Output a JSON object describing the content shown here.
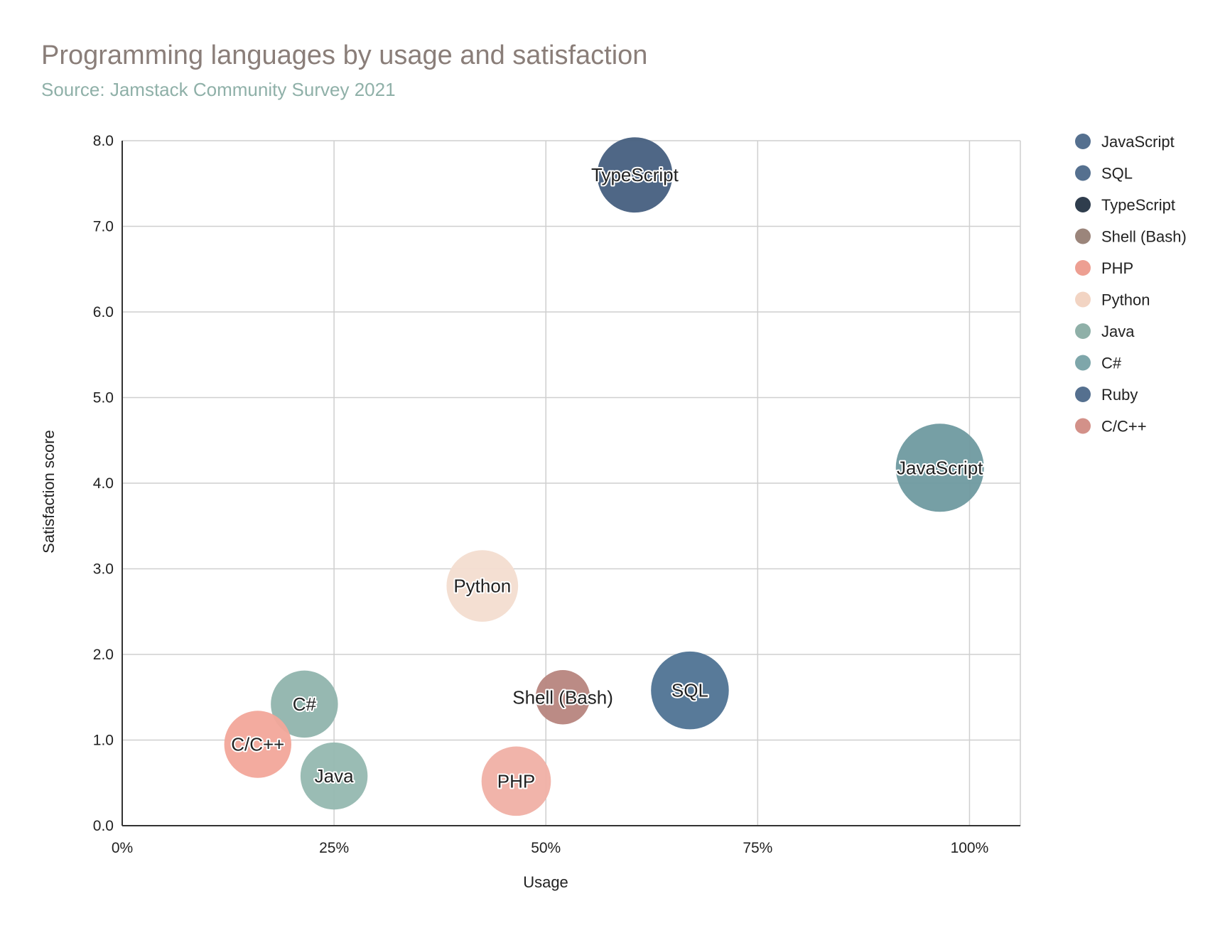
{
  "chart_data": {
    "type": "bubble",
    "title": "Programming languages by usage and satisfaction",
    "subtitle": "Source: Jamstack Community Survey 2021",
    "xlabel": "Usage",
    "ylabel": "Satisfaction score",
    "xlim": [
      0,
      1.06
    ],
    "ylim": [
      0,
      8
    ],
    "x_ticks": [
      0,
      0.25,
      0.5,
      0.75,
      1.0
    ],
    "x_tick_labels": [
      "0%",
      "25%",
      "50%",
      "75%",
      "100%"
    ],
    "y_ticks": [
      0,
      1,
      2,
      3,
      4,
      5,
      6,
      7,
      8
    ],
    "y_tick_labels": [
      "0.0",
      "1.0",
      "2.0",
      "3.0",
      "4.0",
      "5.0",
      "6.0",
      "7.0",
      "8.0"
    ],
    "grid": true,
    "legend_position": "right",
    "series": [
      {
        "name": "JavaScript",
        "x": 0.965,
        "y": 4.18,
        "size": 1.0,
        "color": "#6f9aa0",
        "legend_color": "#55708f"
      },
      {
        "name": "SQL",
        "x": 0.67,
        "y": 1.58,
        "size": 0.78,
        "color": "#4f7394",
        "legend_color": "#55708f"
      },
      {
        "name": "TypeScript",
        "x": 0.605,
        "y": 7.6,
        "size": 0.73,
        "color": "#465f80",
        "legend_color": "#2f3d4d"
      },
      {
        "name": "Shell (Bash)",
        "x": 0.52,
        "y": 1.5,
        "size": 0.38,
        "color": "#b7857e",
        "legend_color": "#9b857b"
      },
      {
        "name": "PHP",
        "x": 0.465,
        "y": 0.52,
        "size": 0.62,
        "color": "#f0b0a5",
        "legend_color": "#ed9f92"
      },
      {
        "name": "Python",
        "x": 0.425,
        "y": 2.8,
        "size": 0.66,
        "color": "#f3ddd0",
        "legend_color": "#f2d4c3"
      },
      {
        "name": "Java",
        "x": 0.25,
        "y": 0.58,
        "size": 0.58,
        "color": "#95b8b0",
        "legend_color": "#8fb0a8"
      },
      {
        "name": "C#",
        "x": 0.215,
        "y": 1.42,
        "size": 0.58,
        "color": "#90b4ad",
        "legend_color": "#7ea6aa"
      },
      {
        "name": "Ruby",
        "x": null,
        "y": null,
        "size": 0,
        "color": "#55708f",
        "legend_color": "#55708f"
      },
      {
        "name": "C/C++",
        "x": 0.16,
        "y": 0.95,
        "size": 0.58,
        "color": "#f2a69a",
        "legend_color": "#d39189"
      }
    ]
  }
}
